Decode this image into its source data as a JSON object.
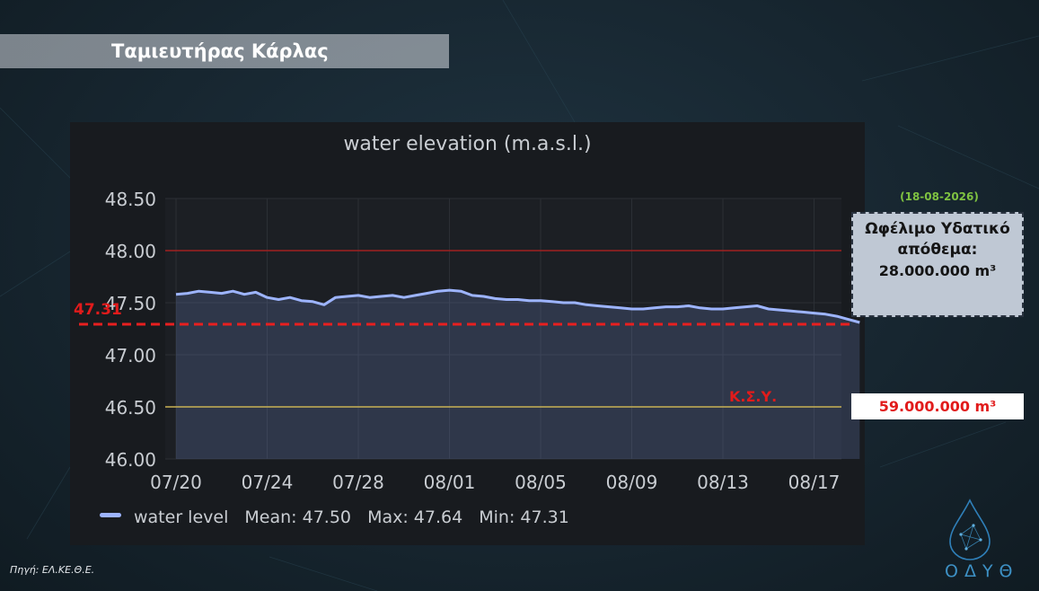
{
  "header": {
    "title": "Ταμιευτήρας Κάρλας"
  },
  "chart_data": {
    "type": "line",
    "title": "water elevation (m.a.s.l.)",
    "xlabel": "",
    "ylabel": "",
    "x_ticks": [
      "07/20",
      "07/24",
      "07/28",
      "08/01",
      "08/05",
      "08/09",
      "08/13",
      "08/17"
    ],
    "y_ticks": [
      "48.50",
      "48.00",
      "47.50",
      "47.00",
      "46.50",
      "46.00"
    ],
    "ylim": [
      46.0,
      48.5
    ],
    "grid": true,
    "legend_position": "bottom-left",
    "series": [
      {
        "name": "water level",
        "color": "#9db4ff",
        "x": [
          0,
          0.5,
          1,
          1.5,
          2,
          2.5,
          3,
          3.5,
          4,
          4.5,
          5,
          5.5,
          6,
          6.5,
          7,
          7.5,
          8,
          8.5,
          9,
          9.5,
          10,
          10.5,
          11,
          11.5,
          12,
          12.5,
          13,
          13.5,
          14,
          14.5,
          15,
          15.5,
          16,
          16.5,
          17,
          17.5,
          18,
          18.5,
          19,
          19.5,
          20,
          20.5,
          21,
          21.5,
          22,
          22.5,
          23,
          23.5,
          24,
          24.5,
          25,
          25.5,
          26,
          26.5,
          27,
          27.5,
          28,
          28.5,
          29,
          29.5,
          30
        ],
        "values": [
          47.58,
          47.59,
          47.61,
          47.6,
          47.59,
          47.61,
          47.58,
          47.6,
          47.55,
          47.53,
          47.55,
          47.52,
          47.51,
          47.48,
          47.55,
          47.56,
          47.57,
          47.55,
          47.56,
          47.57,
          47.55,
          47.57,
          47.59,
          47.61,
          47.62,
          47.61,
          47.57,
          47.56,
          47.54,
          47.53,
          47.53,
          47.52,
          47.52,
          47.51,
          47.5,
          47.5,
          47.48,
          47.47,
          47.46,
          47.45,
          47.44,
          47.44,
          47.45,
          47.46,
          47.46,
          47.47,
          47.45,
          47.44,
          47.44,
          47.45,
          47.46,
          47.47,
          47.44,
          47.43,
          47.42,
          47.41,
          47.4,
          47.39,
          47.37,
          47.34,
          47.31
        ]
      }
    ],
    "reference_lines": [
      {
        "value": 48.0,
        "color": "#a02020"
      },
      {
        "value": 46.5,
        "color": "#c9b255"
      },
      {
        "value": 47.31,
        "color": "#e81f1f",
        "dashed": true
      }
    ],
    "annotations": {
      "min_marker": "47.31",
      "ksy": "Κ.Σ.Υ."
    },
    "stats": {
      "mean_label": "Mean: 47.50",
      "max_label": "Max: 47.64",
      "min_label": "Min: 47.31"
    }
  },
  "storage": {
    "date": "(18-08-2026)",
    "label": "Ωφέλιμο Υδατικό απόθεμα:",
    "value": "28.000.000 m³"
  },
  "ksy_storage": {
    "value": "59.000.000 m³"
  },
  "source": "Πηγή: ΕΛ.ΚΕ.Θ.Ε.",
  "logo": {
    "text": "ΟΔΥΘ"
  },
  "colors": {
    "panel": "#181b1f",
    "series": "#9db4ff",
    "alert": "#e11b1b"
  }
}
